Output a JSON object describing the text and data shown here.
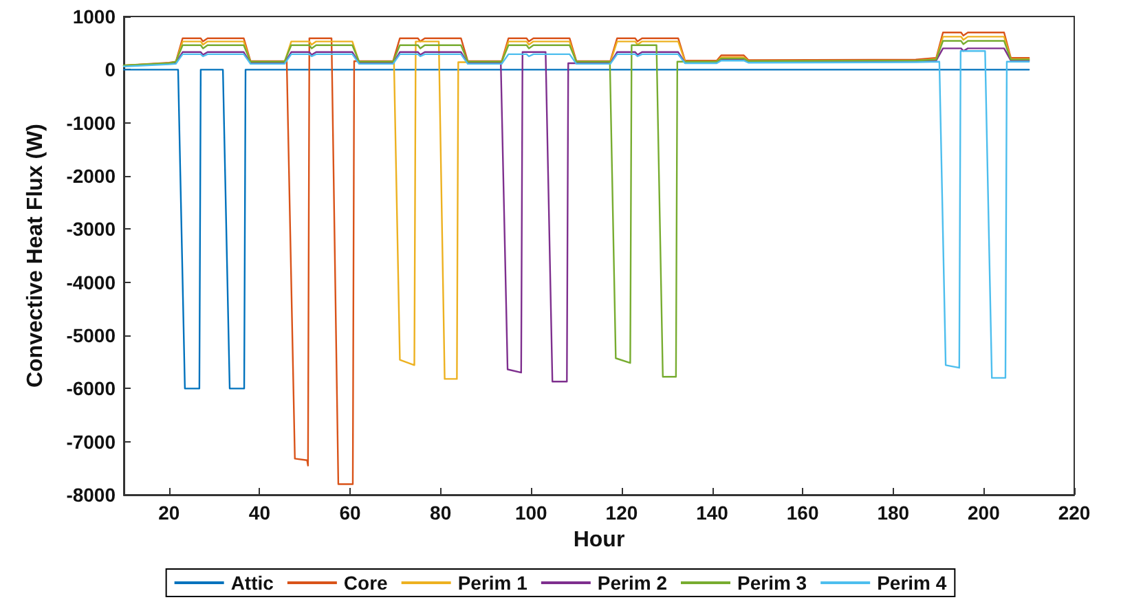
{
  "chart_data": {
    "type": "line",
    "xlabel": "Hour",
    "ylabel": "Convective Heat Flux (W)",
    "xlim": [
      10,
      220
    ],
    "xticks": [
      20,
      40,
      60,
      80,
      100,
      120,
      140,
      160,
      180,
      200,
      220
    ],
    "ylim": [
      -8000,
      1000
    ],
    "yticks": [
      -8000,
      -7000,
      -6000,
      -5000,
      -4000,
      -3000,
      -2000,
      -1000,
      0,
      1000
    ],
    "grid": false,
    "legend": "bottom",
    "series": [
      {
        "name": "Attic",
        "color": "#0072bd",
        "x": [
          10,
          22,
          23.5,
          26.7,
          27,
          31.9,
          33.4,
          36.6,
          36.9,
          210
        ],
        "values": [
          0,
          0,
          -6000,
          -6000,
          0,
          0,
          -6000,
          -6000,
          0,
          0
        ]
      },
      {
        "name": "Core",
        "color": "#d95319",
        "x": [
          10,
          20,
          21.5,
          23,
          27,
          27.5,
          28.5,
          36.5,
          38,
          45.5,
          46,
          47.8,
          50.5,
          50.7,
          51,
          55.9,
          57.4,
          60.6,
          60.9,
          69.5,
          71,
          75,
          75.5,
          76.5,
          84.5,
          86,
          93.5,
          95,
          99,
          99.5,
          100.5,
          108.5,
          110,
          117.5,
          119,
          123,
          123.5,
          124.5,
          132.5,
          134,
          141,
          142,
          147,
          148,
          185,
          189.5,
          191,
          195,
          195.5,
          196.5,
          204.5,
          206,
          210
        ],
        "values": [
          80,
          130,
          150,
          590,
          590,
          530,
          590,
          590,
          160,
          160,
          160,
          -7320,
          -7350,
          -7450,
          590,
          590,
          -7800,
          -7800,
          160,
          160,
          590,
          590,
          530,
          590,
          590,
          160,
          160,
          590,
          590,
          530,
          590,
          590,
          160,
          160,
          590,
          590,
          530,
          590,
          590,
          170,
          170,
          270,
          270,
          180,
          190,
          220,
          700,
          700,
          640,
          700,
          700,
          220,
          220
        ]
      },
      {
        "name": "Perim 1",
        "color": "#edb120",
        "x": [
          10,
          20,
          21.5,
          23,
          27,
          27.5,
          28.5,
          36.5,
          38,
          45.5,
          47,
          51,
          51.5,
          52.5,
          60.5,
          62,
          69.7,
          71,
          74.2,
          74.5,
          79.6,
          80.9,
          83.6,
          83.9,
          93.5,
          95,
          99,
          99.5,
          100.5,
          108.5,
          110,
          117.5,
          119,
          123,
          123.5,
          124.5,
          132.5,
          134,
          141,
          142,
          147,
          148,
          185,
          189.5,
          191,
          195,
          195.5,
          196.5,
          204.5,
          206,
          210
        ],
        "values": [
          80,
          120,
          140,
          530,
          530,
          470,
          530,
          530,
          140,
          140,
          530,
          530,
          470,
          530,
          530,
          140,
          140,
          -5460,
          -5560,
          530,
          530,
          -5820,
          -5820,
          140,
          140,
          530,
          530,
          470,
          530,
          530,
          140,
          140,
          530,
          530,
          470,
          530,
          530,
          150,
          150,
          230,
          230,
          160,
          170,
          200,
          620,
          620,
          560,
          620,
          620,
          200,
          200
        ]
      },
      {
        "name": "Perim 2",
        "color": "#7e2f8e",
        "x": [
          10,
          20,
          21.5,
          23,
          27,
          27.5,
          28.5,
          36.5,
          38,
          45.5,
          47,
          51,
          51.5,
          52.5,
          60.5,
          62,
          69.5,
          71,
          75,
          75.5,
          76.5,
          84.5,
          86,
          93.3,
          94.8,
          97.8,
          98.1,
          103.2,
          104.7,
          107.9,
          108.2,
          117.5,
          119,
          123,
          123.5,
          124.5,
          132.5,
          134,
          141,
          142,
          147,
          148,
          185,
          189.5,
          191,
          195,
          195.5,
          196.5,
          204.5,
          206,
          210
        ],
        "values": [
          70,
          110,
          120,
          330,
          330,
          280,
          330,
          330,
          120,
          120,
          330,
          330,
          280,
          330,
          330,
          120,
          120,
          330,
          330,
          280,
          330,
          330,
          120,
          120,
          -5640,
          -5700,
          330,
          330,
          -5870,
          -5870,
          120,
          120,
          330,
          330,
          280,
          330,
          330,
          130,
          130,
          190,
          190,
          140,
          150,
          170,
          400,
          400,
          350,
          400,
          400,
          170,
          170
        ]
      },
      {
        "name": "Perim 3",
        "color": "#77ac30",
        "x": [
          10,
          20,
          21.5,
          23,
          27,
          27.5,
          28.5,
          36.5,
          38,
          45.5,
          47,
          51,
          51.5,
          52.5,
          60.5,
          62,
          69.5,
          71,
          75,
          75.5,
          76.5,
          84.5,
          86,
          93.5,
          95,
          99,
          99.5,
          100.5,
          108.5,
          110,
          117.4,
          118.7,
          121.9,
          122.2,
          127.7,
          129.1,
          132,
          132.3,
          141,
          142,
          147,
          148,
          185,
          189.5,
          191,
          195,
          195.5,
          196.5,
          204.5,
          206,
          210
        ],
        "values": [
          80,
          120,
          150,
          460,
          460,
          400,
          460,
          460,
          150,
          150,
          460,
          460,
          400,
          460,
          460,
          150,
          150,
          460,
          460,
          400,
          460,
          460,
          150,
          150,
          460,
          460,
          400,
          460,
          460,
          150,
          150,
          -5430,
          -5520,
          460,
          460,
          -5780,
          -5780,
          150,
          150,
          210,
          210,
          160,
          170,
          190,
          540,
          540,
          480,
          540,
          540,
          190,
          190
        ]
      },
      {
        "name": "Perim 4",
        "color": "#4dbeee",
        "x": [
          10,
          20,
          21.5,
          23,
          27,
          27.5,
          28.5,
          36.5,
          38,
          45.5,
          47,
          51,
          51.5,
          52.5,
          60.5,
          62,
          69.5,
          71,
          75,
          75.5,
          76.5,
          84.5,
          86,
          93.5,
          95,
          99,
          99.5,
          100.5,
          108.5,
          110,
          117.5,
          119,
          123,
          123.5,
          124.5,
          132.5,
          134,
          141,
          142,
          147,
          148,
          185,
          190.2,
          191.6,
          194.6,
          194.9,
          200.3,
          201.8,
          204.8,
          205.1,
          210
        ],
        "values": [
          60,
          100,
          110,
          290,
          290,
          250,
          290,
          290,
          110,
          110,
          290,
          290,
          250,
          290,
          290,
          110,
          110,
          290,
          290,
          250,
          290,
          290,
          110,
          110,
          290,
          290,
          250,
          290,
          290,
          110,
          110,
          290,
          290,
          250,
          290,
          290,
          120,
          120,
          170,
          170,
          130,
          140,
          150,
          -5560,
          -5610,
          350,
          350,
          -5800,
          -5800,
          150,
          150
        ]
      }
    ]
  }
}
